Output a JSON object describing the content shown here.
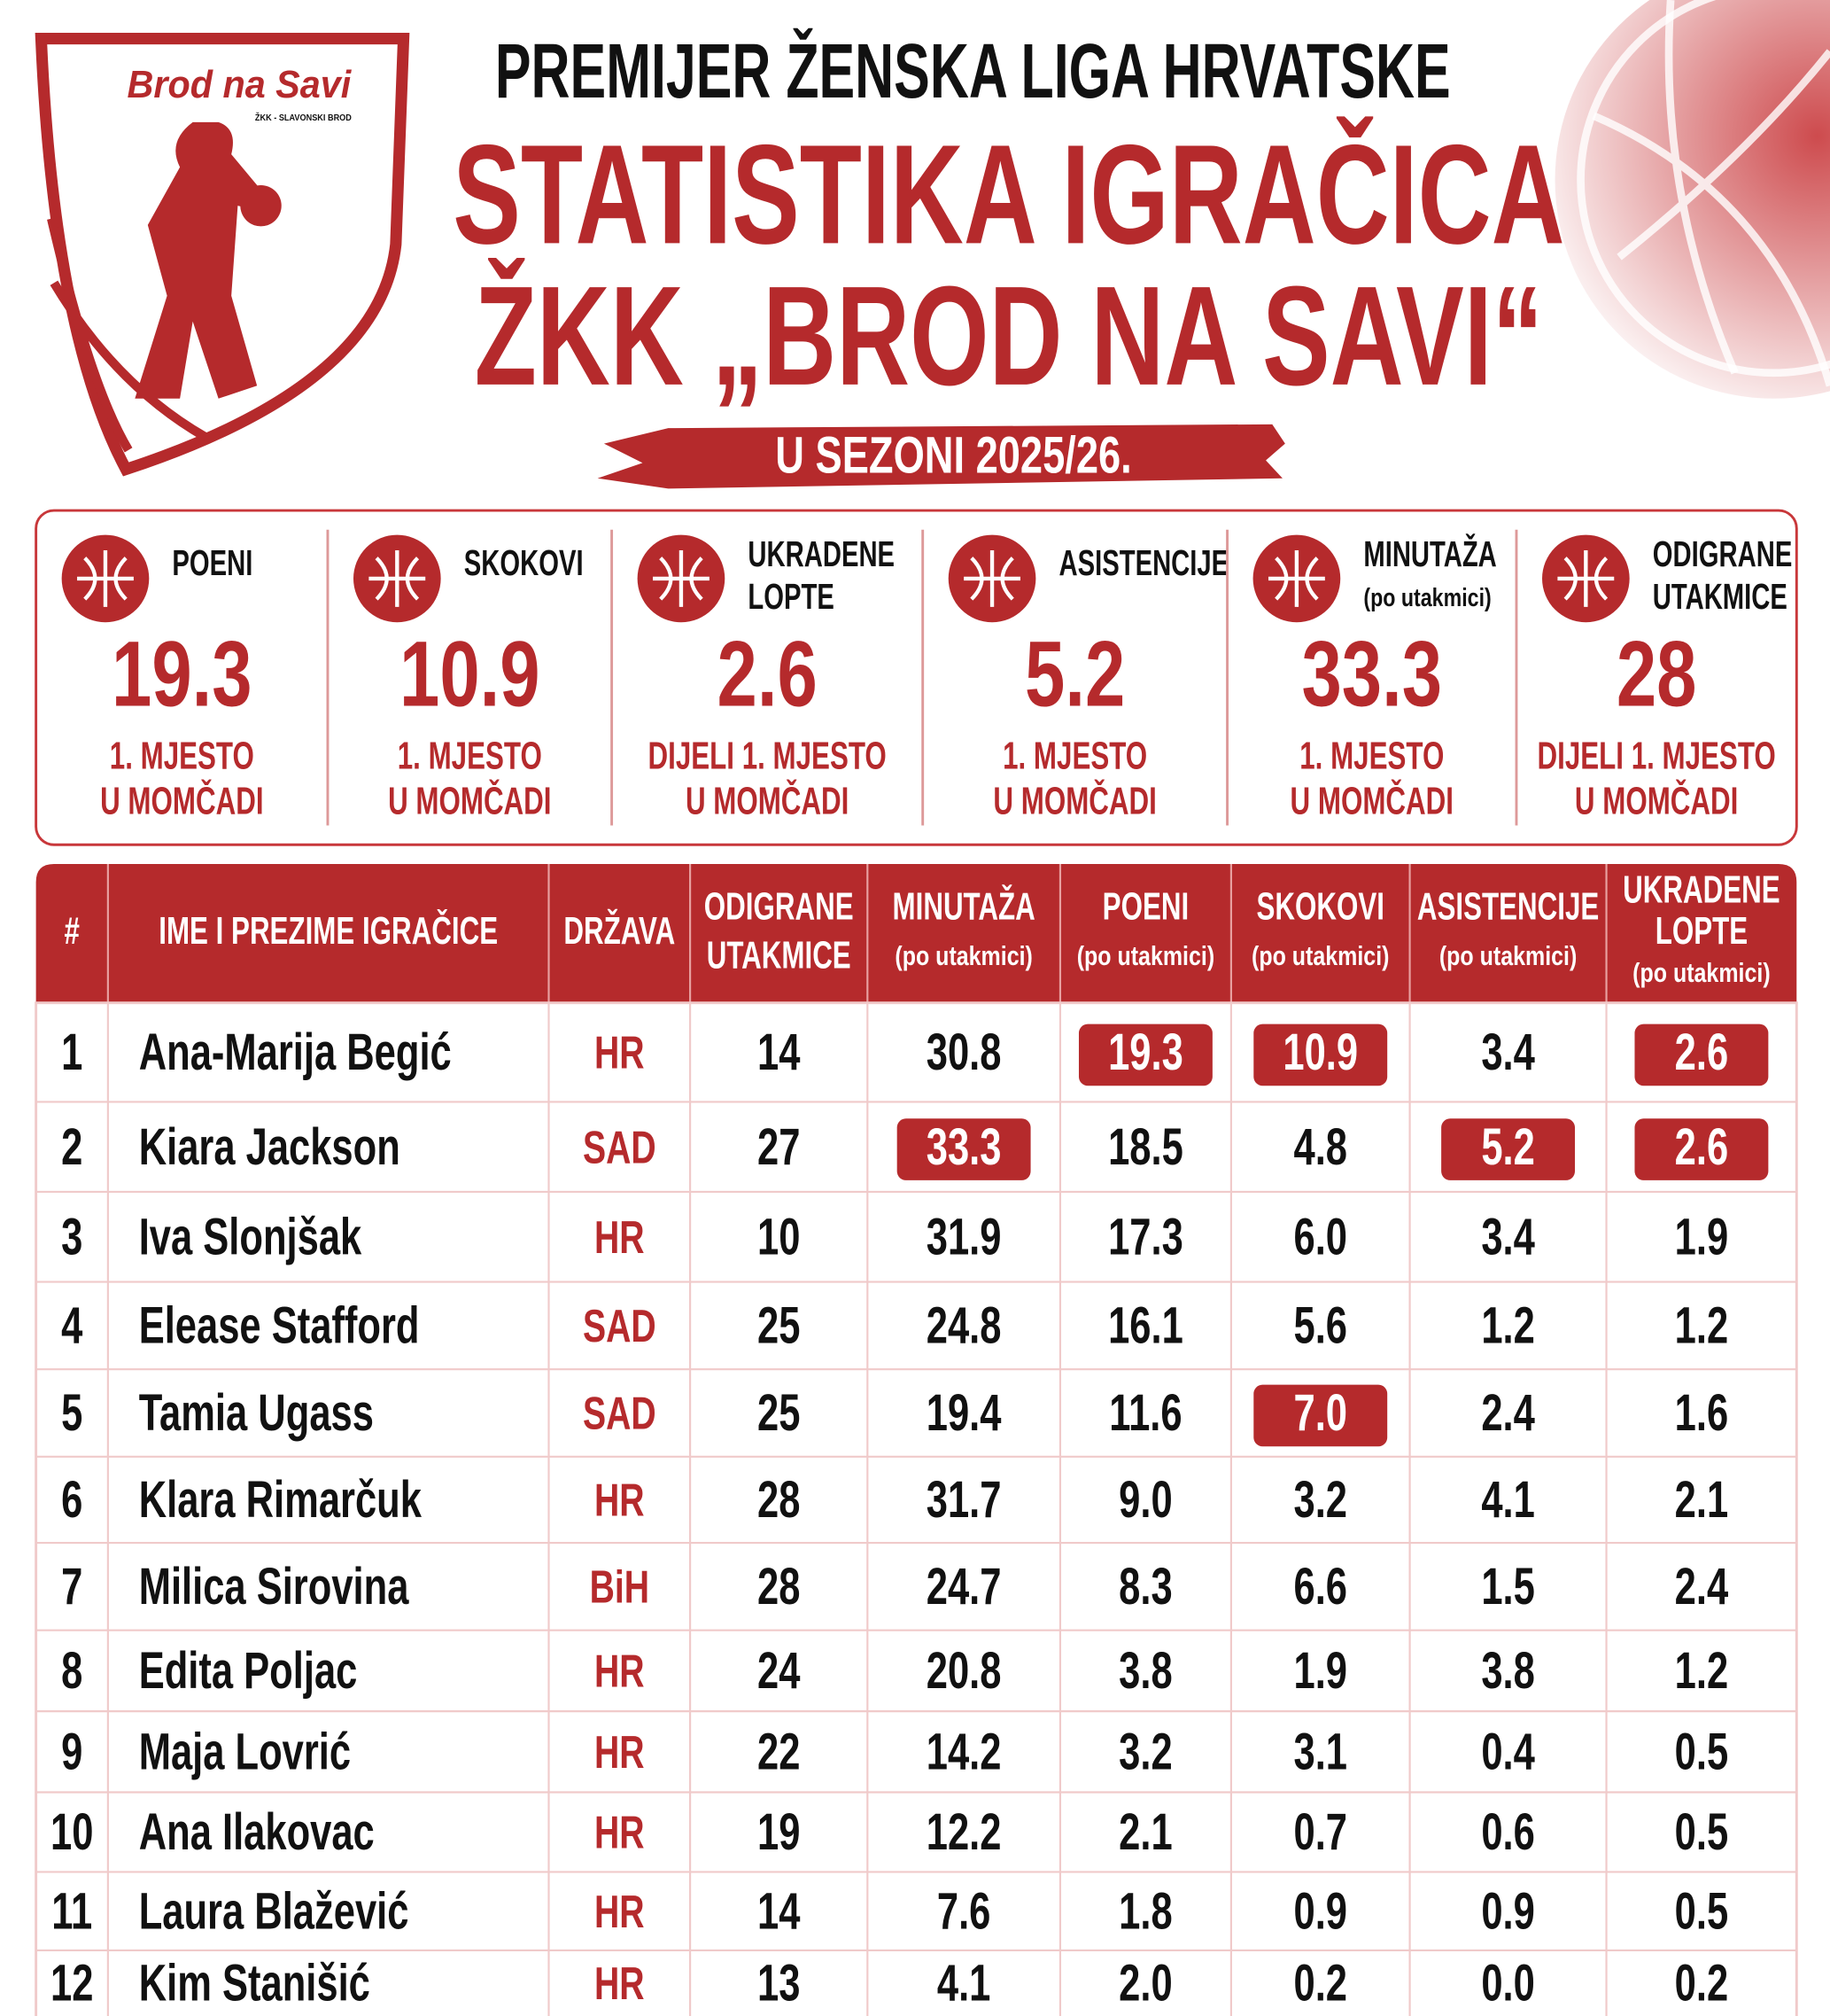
{
  "logo": {
    "name": "Brod na Savi",
    "sub": "ŽKK - SLAVONSKI BROD"
  },
  "header": {
    "league": "PREMIJER ŽENSKA LIGA HRVATSKE",
    "title": [
      "STATISTIKA IGRAČICA",
      "ŽKK „BROD NA SAVI“"
    ],
    "season": "U SEZONI 2025/26."
  },
  "summary": [
    {
      "label": [
        "POENI"
      ],
      "value": "19.3",
      "note": [
        "1. MJESTO",
        "U MOMČADI"
      ]
    },
    {
      "label": [
        "SKOKOVI"
      ],
      "value": "10.9",
      "note": [
        "1. MJESTO",
        "U MOMČADI"
      ]
    },
    {
      "label": [
        "UKRADENE",
        "LOPTE"
      ],
      "value": "2.6",
      "note": [
        "DIJELI 1. MJESTO",
        "U MOMČADI"
      ]
    },
    {
      "label": [
        "ASISTENCIJE"
      ],
      "value": "5.2",
      "note": [
        "1. MJESTO",
        "U MOMČADI"
      ]
    },
    {
      "label": [
        "MINUTAŽA"
      ],
      "sub": "(po utakmici)",
      "value": "33.3",
      "note": [
        "1. MJESTO",
        "U MOMČADI"
      ]
    },
    {
      "label": [
        "ODIGRANE",
        "UTAKMICE"
      ],
      "value": "28",
      "note": [
        "DIJELI 1. MJESTO",
        "U MOMČADI"
      ]
    }
  ],
  "table": {
    "headers": [
      {
        "title": [
          "#"
        ]
      },
      {
        "title": [
          "IME I PREZIME IGRAČICE"
        ]
      },
      {
        "title": [
          "DRŽAVA"
        ]
      },
      {
        "title": [
          "ODIGRANE",
          "UTAKMICE"
        ]
      },
      {
        "title": [
          "MINUTAŽA"
        ],
        "sub": "(po utakmici)"
      },
      {
        "title": [
          "POENI"
        ],
        "sub": "(po utakmici)"
      },
      {
        "title": [
          "SKOKOVI"
        ],
        "sub": "(po utakmici)"
      },
      {
        "title": [
          "ASISTENCIJE"
        ],
        "sub": "(po utakmici)"
      },
      {
        "title": [
          "UKRADENE",
          "LOPTE"
        ],
        "sub": "(po utakmici)"
      }
    ],
    "rows": [
      [
        "1",
        "Ana-Marija Begić",
        "HR",
        "14",
        "30.8",
        "19.3",
        "10.9",
        "3.4",
        "2.6"
      ],
      [
        "2",
        "Kiara Jackson",
        "SAD",
        "27",
        "33.3",
        "18.5",
        "4.8",
        "5.2",
        "2.6"
      ],
      [
        "3",
        "Iva Slonjšak",
        "HR",
        "10",
        "31.9",
        "17.3",
        "6.0",
        "3.4",
        "1.9"
      ],
      [
        "4",
        "Elease Stafford",
        "SAD",
        "25",
        "24.8",
        "16.1",
        "5.6",
        "1.2",
        "1.2"
      ],
      [
        "5",
        "Tamia Ugass",
        "SAD",
        "25",
        "19.4",
        "11.6",
        "7.0",
        "2.4",
        "1.6"
      ],
      [
        "6",
        "Klara Rimarčuk",
        "HR",
        "28",
        "31.7",
        "9.0",
        "3.2",
        "4.1",
        "2.1"
      ],
      [
        "7",
        "Milica Sirovina",
        "BiH",
        "28",
        "24.7",
        "8.3",
        "6.6",
        "1.5",
        "2.4"
      ],
      [
        "8",
        "Edita Poljac",
        "HR",
        "24",
        "20.8",
        "3.8",
        "1.9",
        "3.8",
        "1.2"
      ],
      [
        "9",
        "Maja Lovrić",
        "HR",
        "22",
        "14.2",
        "3.2",
        "3.1",
        "0.4",
        "0.5"
      ],
      [
        "10",
        "Ana Ilakovac",
        "HR",
        "19",
        "12.2",
        "2.1",
        "0.7",
        "0.6",
        "0.5"
      ],
      [
        "11",
        "Laura Blažević",
        "HR",
        "14",
        "7.6",
        "1.8",
        "0.9",
        "0.9",
        "0.5"
      ],
      [
        "12",
        "Kim Stanišić",
        "HR",
        "13",
        "4.1",
        "2.0",
        "0.2",
        "0.0",
        "0.2"
      ]
    ],
    "highlight": [
      [
        5,
        6,
        8
      ],
      [
        4,
        7,
        8
      ],
      [],
      [],
      [
        6
      ],
      [],
      [],
      [],
      [],
      [],
      [],
      []
    ]
  }
}
